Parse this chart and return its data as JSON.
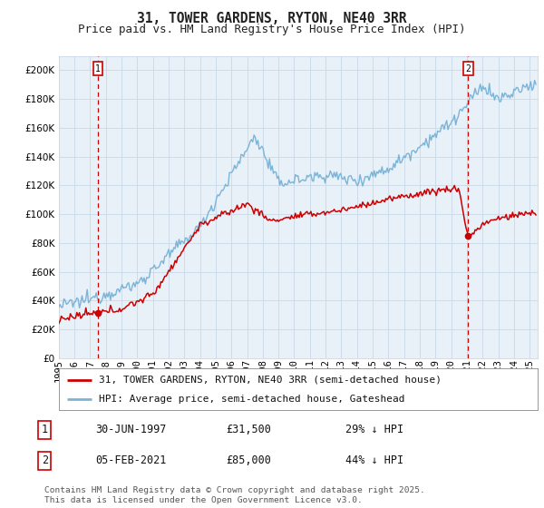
{
  "title": "31, TOWER GARDENS, RYTON, NE40 3RR",
  "subtitle": "Price paid vs. HM Land Registry's House Price Index (HPI)",
  "ylim": [
    0,
    210000
  ],
  "yticks": [
    0,
    20000,
    40000,
    60000,
    80000,
    100000,
    120000,
    140000,
    160000,
    180000,
    200000
  ],
  "xmin_year": 1995.0,
  "xmax_year": 2025.5,
  "xtick_years": [
    1995,
    1996,
    1997,
    1998,
    1999,
    2000,
    2001,
    2002,
    2003,
    2004,
    2005,
    2006,
    2007,
    2008,
    2009,
    2010,
    2011,
    2012,
    2013,
    2014,
    2015,
    2016,
    2017,
    2018,
    2019,
    2020,
    2021,
    2022,
    2023,
    2024,
    2025
  ],
  "hpi_color": "#7ab4d8",
  "price_color": "#cc0000",
  "grid_color": "#c8d8e8",
  "chart_bg": "#e8f0f8",
  "bg_color": "#ffffff",
  "marker1_year": 1997.5,
  "marker1_price": 31500,
  "marker2_year": 2021.09,
  "marker2_price": 85000,
  "legend_line1": "31, TOWER GARDENS, RYTON, NE40 3RR (semi-detached house)",
  "legend_line2": "HPI: Average price, semi-detached house, Gateshead",
  "annotation1_date": "30-JUN-1997",
  "annotation1_price": "£31,500",
  "annotation1_hpi": "29% ↓ HPI",
  "annotation2_date": "05-FEB-2021",
  "annotation2_price": "£85,000",
  "annotation2_hpi": "44% ↓ HPI",
  "copyright": "Contains HM Land Registry data © Crown copyright and database right 2025.\nThis data is licensed under the Open Government Licence v3.0.",
  "title_fontsize": 10.5,
  "subtitle_fontsize": 9,
  "tick_fontsize": 7.5,
  "legend_fontsize": 8,
  "annot_fontsize": 8.5,
  "copyright_fontsize": 6.8
}
